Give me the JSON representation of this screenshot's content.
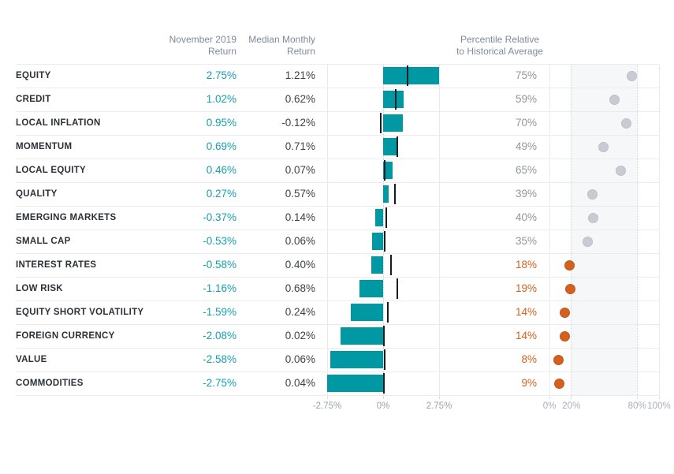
{
  "headers": {
    "november_line1": "November 2019",
    "november_line2": "Return",
    "median_line1": "Median Monthly",
    "median_line2": "Return",
    "percentile_line1": "Percentile Relative",
    "percentile_line2": "to Historical Average"
  },
  "colors": {
    "bar_teal": "#0099a3",
    "november_value_text": "#179fab",
    "median_tick": "#141d26",
    "percentile_gray_text": "#8f969e",
    "percentile_orange_text": "#d2601e",
    "dot_gray": "#c8ccd2",
    "dot_orange": "#d2601e",
    "band_background": "#f5f7f9"
  },
  "chart_data": [
    {
      "type": "bar",
      "orientation": "horizontal",
      "title": "November 2019 Return vs Median Monthly Return",
      "categories": [
        "EQUITY",
        "CREDIT",
        "LOCAL INFLATION",
        "MOMENTUM",
        "LOCAL EQUITY",
        "QUALITY",
        "EMERGING MARKETS",
        "SMALL CAP",
        "INTEREST RATES",
        "LOW RISK",
        "EQUITY SHORT VOLATILITY",
        "FOREIGN CURRENCY",
        "VALUE",
        "COMMODITIES"
      ],
      "series": [
        {
          "name": "November 2019 Return",
          "style": "bar",
          "color": "#0099a3",
          "values": [
            2.75,
            1.02,
            0.95,
            0.69,
            0.46,
            0.27,
            -0.37,
            -0.53,
            -0.58,
            -1.16,
            -1.59,
            -2.08,
            -2.58,
            -2.75
          ]
        },
        {
          "name": "Median Monthly Return",
          "style": "tick",
          "color": "#141d26",
          "values": [
            1.21,
            0.62,
            -0.12,
            0.71,
            0.07,
            0.57,
            0.14,
            0.06,
            0.4,
            0.68,
            0.24,
            0.02,
            0.06,
            0.04
          ]
        }
      ],
      "xlim": [
        -2.75,
        2.75
      ],
      "x_ticks": [
        "-2.75%",
        "0%",
        "2.75%"
      ],
      "x_tick_values": [
        -2.75,
        0,
        2.75
      ],
      "grid": true
    },
    {
      "type": "scatter",
      "title": "Percentile Relative to Historical Average",
      "categories": [
        "EQUITY",
        "CREDIT",
        "LOCAL INFLATION",
        "MOMENTUM",
        "LOCAL EQUITY",
        "QUALITY",
        "EMERGING MARKETS",
        "SMALL CAP",
        "INTEREST RATES",
        "LOW RISK",
        "EQUITY SHORT VOLATILITY",
        "FOREIGN CURRENCY",
        "VALUE",
        "COMMODITIES"
      ],
      "values": [
        75,
        59,
        70,
        49,
        65,
        39,
        40,
        35,
        18,
        19,
        14,
        14,
        8,
        9
      ],
      "xlim": [
        0,
        100
      ],
      "x_ticks": [
        "0%",
        "20%",
        "80%",
        "100%"
      ],
      "x_tick_values": [
        0,
        20,
        80,
        100
      ],
      "band": [
        20,
        80
      ],
      "low_threshold": 20,
      "dot_color_normal": "#c8ccd2",
      "dot_color_low": "#d2601e",
      "legend": "none"
    }
  ]
}
